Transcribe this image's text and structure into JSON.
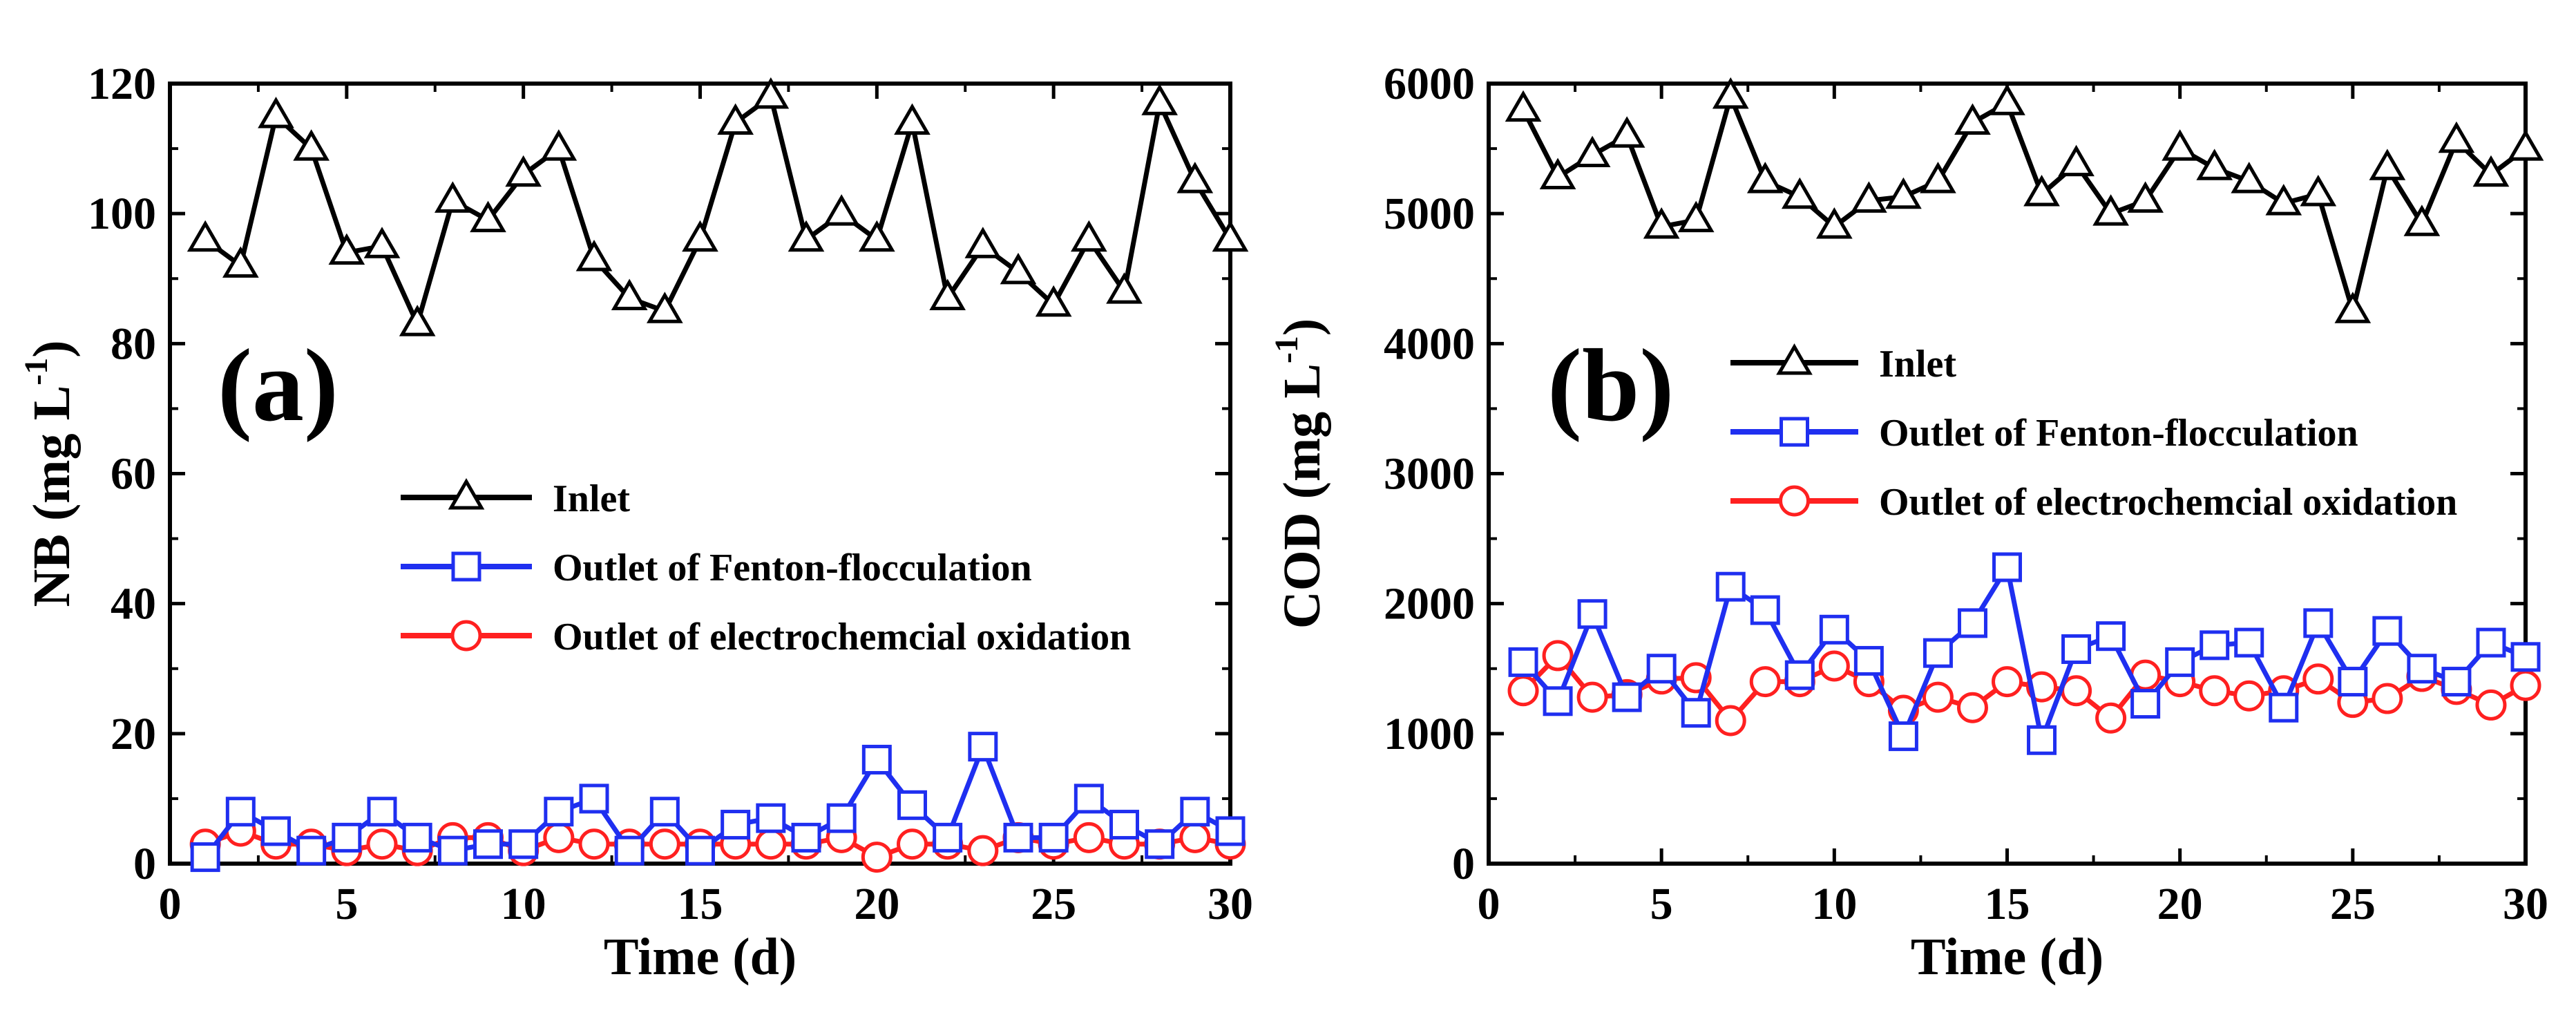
{
  "chart_data": [
    {
      "type": "line",
      "panel_label": "(a)",
      "title": "",
      "xlabel": "Time (d)",
      "ylabel": "NB (mg L",
      "ylabel_sup": "-1",
      "ylabel_close": ")",
      "xlim": [
        0,
        30
      ],
      "ylim": [
        0,
        120
      ],
      "xticks": [
        0,
        5,
        10,
        15,
        20,
        25,
        30
      ],
      "yticks": [
        0,
        20,
        40,
        60,
        80,
        100,
        120
      ],
      "legend_position": "middle-left",
      "x": [
        1,
        2,
        3,
        4,
        5,
        6,
        7,
        8,
        9,
        10,
        11,
        12,
        13,
        14,
        15,
        16,
        17,
        18,
        19,
        20,
        21,
        22,
        23,
        24,
        25,
        26,
        27,
        28,
        29,
        30
      ],
      "series": [
        {
          "name": "Inlet",
          "color": "#000000",
          "marker": "triangle",
          "values": [
            96,
            92,
            115,
            110,
            94,
            95,
            83,
            102,
            99,
            106,
            110,
            93,
            87,
            85,
            96,
            114,
            118,
            96,
            100,
            96,
            114,
            87,
            95,
            91,
            86,
            96,
            88,
            117,
            105,
            96
          ]
        },
        {
          "name": "Outlet of Fenton-flocculation",
          "color": "#1f2ff0",
          "marker": "square",
          "values": [
            1,
            8,
            5,
            2,
            4,
            8,
            4,
            2,
            3,
            3,
            8,
            10,
            2,
            8,
            2,
            6,
            7,
            4,
            7,
            16,
            9,
            4,
            18,
            4,
            4,
            10,
            6,
            3,
            8,
            5
          ]
        },
        {
          "name": "Outlet of electrochemcial oxidation",
          "color": "#ff2020",
          "marker": "circle",
          "values": [
            3,
            5,
            3,
            3,
            2,
            3,
            2,
            4,
            4,
            2,
            4,
            3,
            3,
            3,
            3,
            3,
            3,
            3,
            4,
            1,
            3,
            3,
            2,
            4,
            3,
            4,
            3,
            3,
            4,
            3
          ]
        }
      ]
    },
    {
      "type": "line",
      "panel_label": "(b)",
      "title": "",
      "xlabel": "Time (d)",
      "ylabel": "COD (mg L",
      "ylabel_sup": "-1",
      "ylabel_close": ")",
      "xlim": [
        0,
        30
      ],
      "ylim": [
        0,
        6000
      ],
      "xticks": [
        0,
        5,
        10,
        15,
        20,
        25,
        30
      ],
      "yticks": [
        0,
        1000,
        2000,
        3000,
        4000,
        5000,
        6000
      ],
      "legend_position": "upper-middle",
      "x": [
        1,
        2,
        3,
        4,
        5,
        6,
        7,
        8,
        9,
        10,
        11,
        12,
        13,
        14,
        15,
        16,
        17,
        18,
        19,
        20,
        21,
        22,
        23,
        24,
        25,
        26,
        27,
        28,
        29,
        30
      ],
      "series": [
        {
          "name": "Inlet",
          "color": "#000000",
          "marker": "triangle",
          "values": [
            5800,
            5280,
            5450,
            5600,
            4900,
            4950,
            5900,
            5250,
            5130,
            4900,
            5100,
            5130,
            5250,
            5700,
            5850,
            5150,
            5380,
            5000,
            5100,
            5500,
            5350,
            5250,
            5080,
            5150,
            4250,
            5350,
            4920,
            5560,
            5300,
            5500
          ]
        },
        {
          "name": "Outlet of Fenton-flocculation",
          "color": "#1f2ff0",
          "marker": "square",
          "values": [
            1550,
            1250,
            1920,
            1280,
            1500,
            1160,
            2130,
            1950,
            1450,
            1800,
            1560,
            980,
            1620,
            1850,
            2280,
            950,
            1650,
            1750,
            1230,
            1550,
            1680,
            1700,
            1200,
            1850,
            1400,
            1790,
            1500,
            1400,
            1700,
            1590
          ]
        },
        {
          "name": "Outlet of electrochemcial oxidation",
          "color": "#ff2020",
          "marker": "circle",
          "values": [
            1330,
            1600,
            1280,
            1300,
            1420,
            1430,
            1100,
            1400,
            1400,
            1520,
            1400,
            1180,
            1280,
            1200,
            1400,
            1360,
            1330,
            1120,
            1450,
            1400,
            1330,
            1290,
            1330,
            1420,
            1240,
            1270,
            1440,
            1340,
            1220,
            1370
          ]
        }
      ]
    }
  ]
}
